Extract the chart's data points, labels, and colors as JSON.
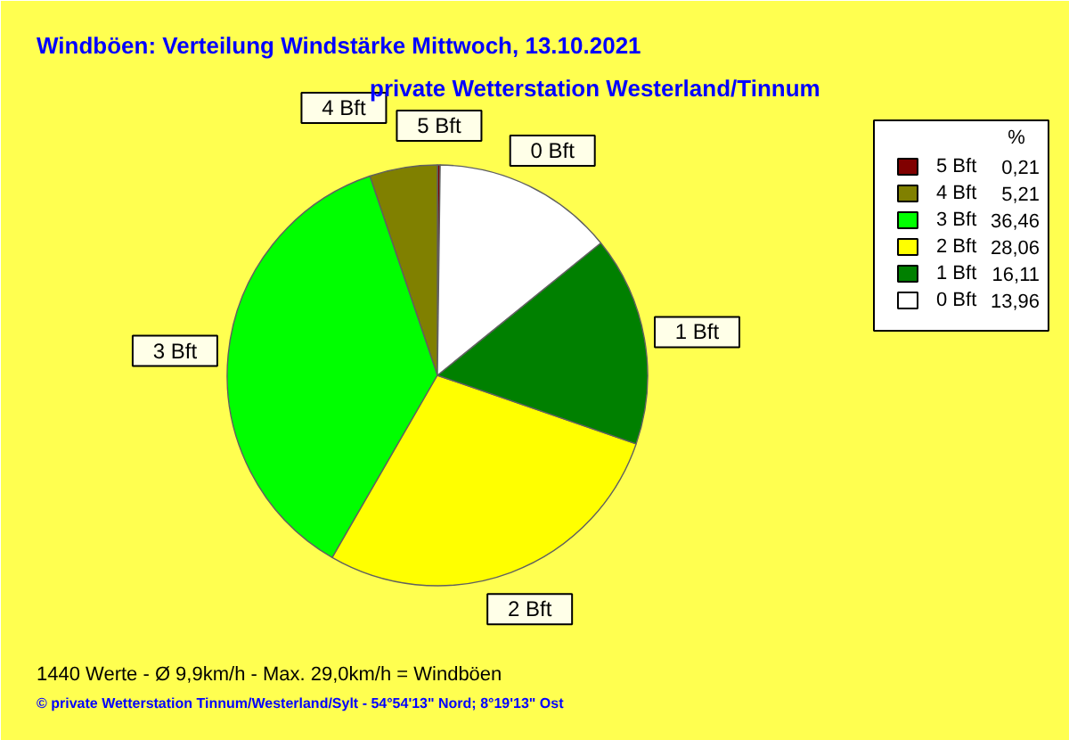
{
  "chart_data": {
    "type": "pie",
    "title": "Windböen: Verteilung Windstärke  Mittwoch, 13.10.2021",
    "subtitle": "private Wetterstation Westerland/Tinnum",
    "categories": [
      "5 Bft",
      "4 Bft",
      "3 Bft",
      "2 Bft",
      "1 Bft",
      "0 Bft"
    ],
    "values": [
      0.21,
      5.21,
      36.46,
      28.06,
      16.11,
      13.96
    ],
    "value_labels": [
      "0,21",
      "5,21",
      "36,46",
      "28,06",
      "16,11",
      "13,96"
    ],
    "colors": [
      "#800000",
      "#808000",
      "#00ff00",
      "#ffff00",
      "#008000",
      "#ffffff"
    ],
    "legend": "top right",
    "legend_title": "%",
    "annotations": [
      "1440 Werte   -   Ø 9,9km/h  -  Max. 29,0km/h = Windböen",
      "© private Wetterstation Tinnum/Westerland/Sylt   -   54°54'13\" Nord; 8°19'13\" Ost"
    ]
  }
}
